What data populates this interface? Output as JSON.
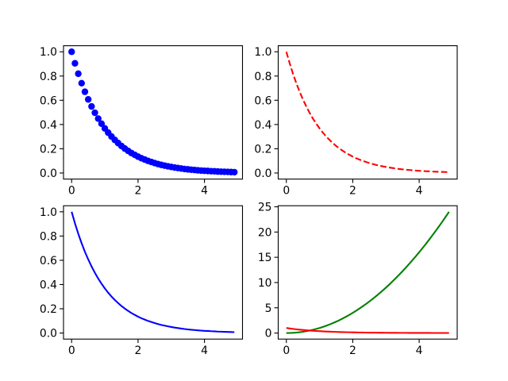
{
  "chart_data": [
    {
      "type": "scatter",
      "x": [
        0,
        0.1,
        0.2,
        0.3,
        0.4,
        0.5,
        0.6,
        0.7,
        0.8,
        0.9,
        1,
        1.1,
        1.2,
        1.3,
        1.4,
        1.5,
        1.6,
        1.7,
        1.8,
        1.9,
        2,
        2.1,
        2.2,
        2.3,
        2.4,
        2.5,
        2.6,
        2.7,
        2.8,
        2.9,
        3,
        3.1,
        3.2,
        3.3,
        3.4,
        3.5,
        3.6,
        3.7,
        3.8,
        3.9,
        4,
        4.1,
        4.2,
        4.3,
        4.4,
        4.5,
        4.6,
        4.7,
        4.8,
        4.9
      ],
      "series": [
        {
          "color": "#0000ff",
          "marker": "circle",
          "values": [
            1.0,
            0.905,
            0.819,
            0.741,
            0.67,
            0.607,
            0.549,
            0.497,
            0.449,
            0.407,
            0.368,
            0.333,
            0.301,
            0.273,
            0.247,
            0.223,
            0.202,
            0.183,
            0.165,
            0.15,
            0.135,
            0.122,
            0.111,
            0.1,
            0.091,
            0.082,
            0.074,
            0.067,
            0.061,
            0.055,
            0.05,
            0.045,
            0.041,
            0.037,
            0.033,
            0.03,
            0.027,
            0.025,
            0.022,
            0.02,
            0.018,
            0.017,
            0.015,
            0.014,
            0.012,
            0.011,
            0.01,
            0.009,
            0.008,
            0.007
          ]
        }
      ],
      "xlim": [
        -0.245,
        5.145
      ],
      "xticks": [
        0,
        2,
        4
      ],
      "ylim": [
        -0.05,
        1.05
      ],
      "yticks": [
        {
          "value": 0,
          "label": "0.0"
        },
        {
          "value": 0.2,
          "label": "0.2"
        },
        {
          "value": 0.4,
          "label": "0.4"
        },
        {
          "value": 0.6,
          "label": "0.6"
        },
        {
          "value": 0.8,
          "label": "0.8"
        },
        {
          "value": 1,
          "label": "1.0"
        }
      ]
    },
    {
      "type": "line",
      "x": [
        0,
        0.1,
        0.2,
        0.3,
        0.4,
        0.5,
        0.6,
        0.7,
        0.8,
        0.9,
        1,
        1.1,
        1.2,
        1.3,
        1.4,
        1.5,
        1.6,
        1.7,
        1.8,
        1.9,
        2,
        2.1,
        2.2,
        2.3,
        2.4,
        2.5,
        2.6,
        2.7,
        2.8,
        2.9,
        3,
        3.1,
        3.2,
        3.3,
        3.4,
        3.5,
        3.6,
        3.7,
        3.8,
        3.9,
        4,
        4.1,
        4.2,
        4.3,
        4.4,
        4.5,
        4.6,
        4.7,
        4.8,
        4.9
      ],
      "series": [
        {
          "color": "#ff0000",
          "linestyle": "dashed",
          "values": [
            1.0,
            0.905,
            0.819,
            0.741,
            0.67,
            0.607,
            0.549,
            0.497,
            0.449,
            0.407,
            0.368,
            0.333,
            0.301,
            0.273,
            0.247,
            0.223,
            0.202,
            0.183,
            0.165,
            0.15,
            0.135,
            0.122,
            0.111,
            0.1,
            0.091,
            0.082,
            0.074,
            0.067,
            0.061,
            0.055,
            0.05,
            0.045,
            0.041,
            0.037,
            0.033,
            0.03,
            0.027,
            0.025,
            0.022,
            0.02,
            0.018,
            0.017,
            0.015,
            0.014,
            0.012,
            0.011,
            0.01,
            0.009,
            0.008,
            0.007
          ]
        }
      ],
      "xlim": [
        -0.245,
        5.145
      ],
      "xticks": [
        0,
        2,
        4
      ],
      "ylim": [
        -0.05,
        1.05
      ],
      "yticks": [
        {
          "value": 0,
          "label": "0.0"
        },
        {
          "value": 0.2,
          "label": "0.2"
        },
        {
          "value": 0.4,
          "label": "0.4"
        },
        {
          "value": 0.6,
          "label": "0.6"
        },
        {
          "value": 0.8,
          "label": "0.8"
        },
        {
          "value": 1,
          "label": "1.0"
        }
      ]
    },
    {
      "type": "line",
      "x": [
        0,
        0.1,
        0.2,
        0.3,
        0.4,
        0.5,
        0.6,
        0.7,
        0.8,
        0.9,
        1,
        1.1,
        1.2,
        1.3,
        1.4,
        1.5,
        1.6,
        1.7,
        1.8,
        1.9,
        2,
        2.1,
        2.2,
        2.3,
        2.4,
        2.5,
        2.6,
        2.7,
        2.8,
        2.9,
        3,
        3.1,
        3.2,
        3.3,
        3.4,
        3.5,
        3.6,
        3.7,
        3.8,
        3.9,
        4,
        4.1,
        4.2,
        4.3,
        4.4,
        4.5,
        4.6,
        4.7,
        4.8,
        4.9
      ],
      "series": [
        {
          "color": "#0000ff",
          "linestyle": "solid",
          "values": [
            1.0,
            0.905,
            0.819,
            0.741,
            0.67,
            0.607,
            0.549,
            0.497,
            0.449,
            0.407,
            0.368,
            0.333,
            0.301,
            0.273,
            0.247,
            0.223,
            0.202,
            0.183,
            0.165,
            0.15,
            0.135,
            0.122,
            0.111,
            0.1,
            0.091,
            0.082,
            0.074,
            0.067,
            0.061,
            0.055,
            0.05,
            0.045,
            0.041,
            0.037,
            0.033,
            0.03,
            0.027,
            0.025,
            0.022,
            0.02,
            0.018,
            0.017,
            0.015,
            0.014,
            0.012,
            0.011,
            0.01,
            0.009,
            0.008,
            0.007
          ]
        }
      ],
      "xlim": [
        -0.245,
        5.145
      ],
      "xticks": [
        0,
        2,
        4
      ],
      "ylim": [
        -0.05,
        1.05
      ],
      "yticks": [
        {
          "value": 0,
          "label": "0.0"
        },
        {
          "value": 0.2,
          "label": "0.2"
        },
        {
          "value": 0.4,
          "label": "0.4"
        },
        {
          "value": 0.6,
          "label": "0.6"
        },
        {
          "value": 0.8,
          "label": "0.8"
        },
        {
          "value": 1,
          "label": "1.0"
        }
      ]
    },
    {
      "type": "line",
      "x": [
        0,
        0.1,
        0.2,
        0.3,
        0.4,
        0.5,
        0.6,
        0.7,
        0.8,
        0.9,
        1,
        1.1,
        1.2,
        1.3,
        1.4,
        1.5,
        1.6,
        1.7,
        1.8,
        1.9,
        2,
        2.1,
        2.2,
        2.3,
        2.4,
        2.5,
        2.6,
        2.7,
        2.8,
        2.9,
        3,
        3.1,
        3.2,
        3.3,
        3.4,
        3.5,
        3.6,
        3.7,
        3.8,
        3.9,
        4,
        4.1,
        4.2,
        4.3,
        4.4,
        4.5,
        4.6,
        4.7,
        4.8,
        4.9
      ],
      "series": [
        {
          "color": "#008000",
          "linestyle": "solid",
          "values": [
            0,
            0.01,
            0.04,
            0.09,
            0.16,
            0.25,
            0.36,
            0.49,
            0.64,
            0.81,
            1,
            1.21,
            1.44,
            1.69,
            1.96,
            2.25,
            2.56,
            2.89,
            3.24,
            3.61,
            4,
            4.41,
            4.84,
            5.29,
            5.76,
            6.25,
            6.76,
            7.29,
            7.84,
            8.41,
            9,
            9.61,
            10.24,
            10.89,
            11.56,
            12.25,
            12.96,
            13.69,
            14.44,
            15.21,
            16,
            16.81,
            17.64,
            18.49,
            19.36,
            20.25,
            21.16,
            22.09,
            23.04,
            24.01
          ]
        },
        {
          "color": "#ff0000",
          "linestyle": "solid",
          "values": [
            1.0,
            0.905,
            0.819,
            0.741,
            0.67,
            0.607,
            0.549,
            0.497,
            0.449,
            0.407,
            0.368,
            0.333,
            0.301,
            0.273,
            0.247,
            0.223,
            0.202,
            0.183,
            0.165,
            0.15,
            0.135,
            0.122,
            0.111,
            0.1,
            0.091,
            0.082,
            0.074,
            0.067,
            0.061,
            0.055,
            0.05,
            0.045,
            0.041,
            0.037,
            0.033,
            0.03,
            0.027,
            0.025,
            0.022,
            0.02,
            0.018,
            0.017,
            0.015,
            0.014,
            0.012,
            0.011,
            0.01,
            0.009,
            0.008,
            0.007
          ]
        }
      ],
      "xlim": [
        -0.245,
        5.145
      ],
      "xticks": [
        0,
        2,
        4
      ],
      "ylim": [
        -1.2,
        25.21
      ],
      "yticks": [
        0,
        5,
        10,
        15,
        20,
        25
      ]
    }
  ]
}
